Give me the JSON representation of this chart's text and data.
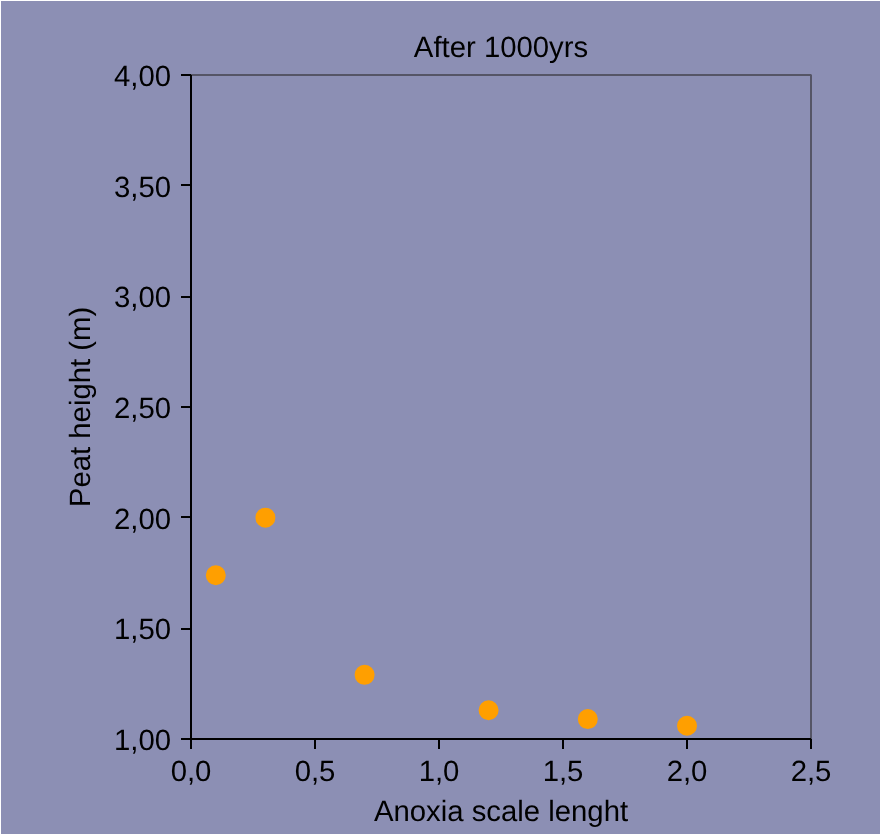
{
  "chart_data": {
    "type": "scatter",
    "title": "After 1000yrs",
    "xlabel": "Anoxia scale lenght",
    "ylabel": "Peat height (m)",
    "x": [
      0.1,
      0.3,
      0.7,
      1.2,
      1.6,
      2.0
    ],
    "series": [
      {
        "color": "#ff9f00",
        "values": [
          1.74,
          2.0,
          1.29,
          1.13,
          1.09,
          1.06
        ]
      }
    ],
    "xlim": [
      0,
      2.5
    ],
    "xticks": [
      {
        "value": 0,
        "label": "0,0"
      },
      {
        "value": 0.5,
        "label": "0,5"
      },
      {
        "value": 1,
        "label": "1,0"
      },
      {
        "value": 1.5,
        "label": "1,5"
      },
      {
        "value": 2,
        "label": "2,0"
      },
      {
        "value": 2.5,
        "label": "2,5"
      }
    ],
    "ylim": [
      1,
      4
    ],
    "yticks": [
      {
        "value": 1,
        "label": "1,00"
      },
      {
        "value": 1.5,
        "label": "1,50"
      },
      {
        "value": 2,
        "label": "2,00"
      },
      {
        "value": 2.5,
        "label": "2,50"
      },
      {
        "value": 3,
        "label": "3,00"
      },
      {
        "value": 3.5,
        "label": "3,50"
      },
      {
        "value": 4,
        "label": "4,00"
      }
    ],
    "grid": false,
    "marker": "circle"
  }
}
